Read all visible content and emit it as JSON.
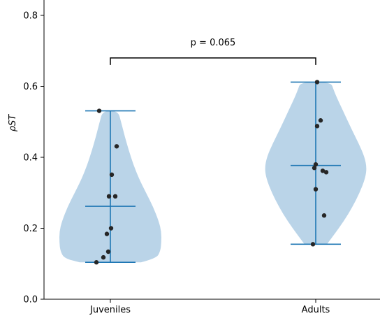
{
  "chart_data": {
    "type": "violin",
    "categories": [
      "Juveniles",
      "Adults"
    ],
    "ylabel": "ρST",
    "ylim": [
      0.0,
      0.85
    ],
    "yticks": [
      0.0,
      0.2,
      0.4,
      0.6,
      0.8
    ],
    "ytick_labels": [
      "0.0",
      "0.2",
      "0.4",
      "0.6",
      "0.8"
    ],
    "grid": false,
    "annotation": {
      "text": "p = 0.065",
      "between": [
        "Juveniles",
        "Adults"
      ],
      "bracket_y": 0.68
    },
    "series": [
      {
        "category": "Juveniles",
        "points": [
          0.531,
          0.431,
          0.351,
          0.29,
          0.29,
          0.2,
          0.184,
          0.134,
          0.118,
          0.104
        ],
        "min": 0.104,
        "max": 0.531,
        "mean": 0.262,
        "density_profile": [
          [
            0.104,
            0.6
          ],
          [
            0.115,
            0.9
          ],
          [
            0.135,
            0.98
          ],
          [
            0.16,
            1.0
          ],
          [
            0.19,
            1.0
          ],
          [
            0.22,
            0.95
          ],
          [
            0.26,
            0.84
          ],
          [
            0.3,
            0.7
          ],
          [
            0.34,
            0.56
          ],
          [
            0.38,
            0.45
          ],
          [
            0.42,
            0.36
          ],
          [
            0.46,
            0.28
          ],
          [
            0.5,
            0.21
          ],
          [
            0.531,
            0.15
          ]
        ]
      },
      {
        "category": "Adults",
        "points": [
          0.612,
          0.504,
          0.488,
          0.38,
          0.37,
          0.362,
          0.358,
          0.31,
          0.236,
          0.155
        ],
        "min": 0.155,
        "max": 0.612,
        "mean": 0.377,
        "density_profile": [
          [
            0.155,
            0.22
          ],
          [
            0.18,
            0.35
          ],
          [
            0.22,
            0.55
          ],
          [
            0.26,
            0.72
          ],
          [
            0.3,
            0.86
          ],
          [
            0.34,
            0.97
          ],
          [
            0.37,
            1.0
          ],
          [
            0.4,
            0.96
          ],
          [
            0.44,
            0.84
          ],
          [
            0.48,
            0.7
          ],
          [
            0.52,
            0.57
          ],
          [
            0.56,
            0.44
          ],
          [
            0.59,
            0.35
          ],
          [
            0.612,
            0.3
          ]
        ]
      }
    ]
  },
  "colors": {
    "violin_fill": "#bad4e8",
    "stat_line": "#1f77b4",
    "points": "#262626",
    "axis": "#000000"
  }
}
